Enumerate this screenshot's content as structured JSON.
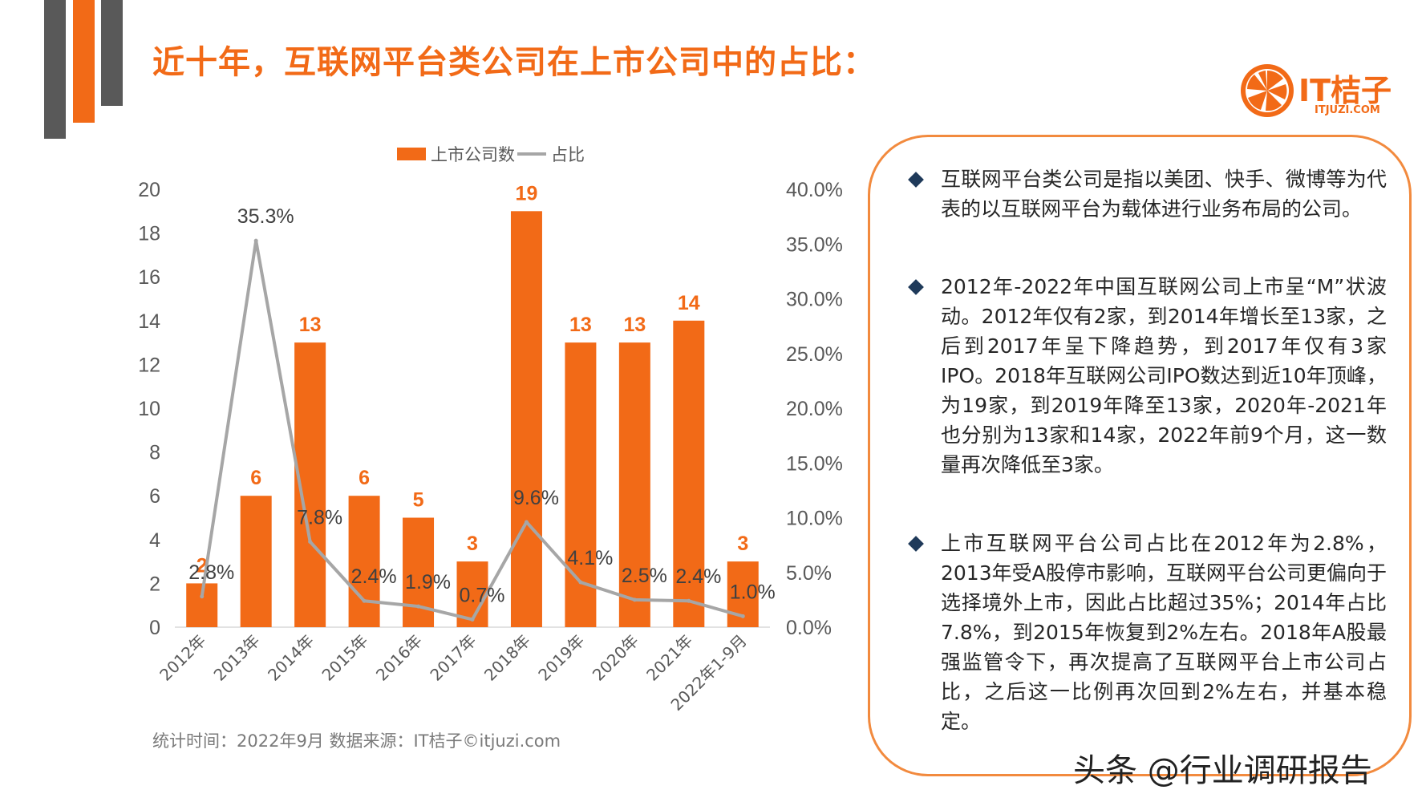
{
  "title": "近十年，互联网平台类公司在上市公司中的占比：",
  "logo": {
    "text": "IT桔子",
    "sub": "ITJUZI.COM"
  },
  "footnote": "统计时间：2022年9月  数据来源：IT桔子©itjuzi.com",
  "panel": {
    "bullets": [
      "互联网平台类公司是指以美团、快手、微博等为代表的以互联网平台为载体进行业务布局的公司。",
      "2012年-2022年中国互联网公司上市呈“M”状波动。2012年仅有2家，到2014年增长至13家，之后到2017年呈下降趋势，到2017年仅有3家IPO。2018年互联网公司IPO数达到近10年顶峰，为19家，到2019年降至13家，2020年-2021年也分别为13家和14家，2022年前9个月，这一数量再次降低至3家。",
      "上市互联网平台公司占比在2012年为2.8%，2013年受A股停市影响，互联网平台公司更偏向于选择境外上市，因此占比超过35%；2014年占比7.8%，到2015年恢复到2%左右。2018年A股最强监管令下，再次提高了互联网平台上市公司占比，之后这一比例再次回到2%左右，并基本稳定。"
    ]
  },
  "watermark": "头条 @行业调研报告",
  "colors": {
    "accent": "#f26a17",
    "line": "#a6a6a6",
    "dark": "#595959"
  },
  "chart_data": {
    "type": "bar+line",
    "categories": [
      "2012年",
      "2013年",
      "2014年",
      "2015年",
      "2016年",
      "2017年",
      "2018年",
      "2019年",
      "2020年",
      "2021年",
      "2022年1-9月"
    ],
    "series": [
      {
        "name": "上市公司数",
        "type": "bar",
        "axis": "left",
        "values": [
          2,
          6,
          13,
          6,
          5,
          3,
          19,
          13,
          13,
          14,
          3
        ]
      },
      {
        "name": "占比",
        "type": "line",
        "axis": "right",
        "values": [
          2.8,
          35.3,
          7.8,
          2.4,
          1.9,
          0.7,
          9.6,
          4.1,
          2.5,
          2.4,
          1.0
        ]
      }
    ],
    "bar_labels": [
      "2",
      "6",
      "13",
      "6",
      "5",
      "3",
      "19",
      "13",
      "13",
      "14",
      "3"
    ],
    "line_labels": [
      "2.8%",
      "35.3%",
      "7.8%",
      "2.4%",
      "1.9%",
      "0.7%",
      "9.6%",
      "4.1%",
      "2.5%",
      "2.4%",
      "1.0%"
    ],
    "ylim_left": [
      0,
      20
    ],
    "left_ticks": [
      "0",
      "2",
      "4",
      "6",
      "8",
      "10",
      "12",
      "14",
      "16",
      "18",
      "20"
    ],
    "ylim_right": [
      0,
      40
    ],
    "right_ticks": [
      "0.0%",
      "5.0%",
      "10.0%",
      "15.0%",
      "20.0%",
      "25.0%",
      "30.0%",
      "35.0%",
      "40.0%"
    ],
    "grid": false,
    "legend": "top-center"
  }
}
